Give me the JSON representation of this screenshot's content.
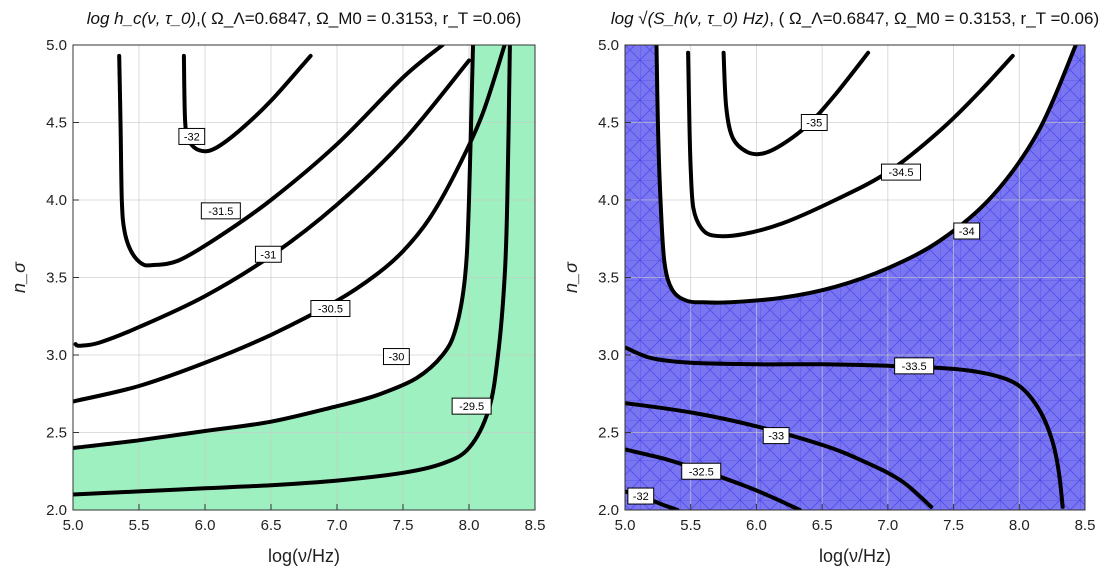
{
  "chart_data": [
    {
      "type": "contour",
      "title_math": "log h_c(ν, τ_0)",
      "title_params": ",( Ω_Λ=0.6847,  Ω_M0 = 0.3153, r_T =0.06)",
      "xlabel": "log(ν/Hz)",
      "ylabel": "n_σ",
      "xlim": [
        5.0,
        8.5
      ],
      "ylim": [
        2.0,
        5.0
      ],
      "xticks": [
        "5.0",
        "5.5",
        "6.0",
        "6.5",
        "7.0",
        "7.5",
        "8.0",
        "8.5"
      ],
      "yticks": [
        "2.0",
        "2.5",
        "3.0",
        "3.5",
        "4.0",
        "4.5",
        "5.0"
      ],
      "grid": true,
      "shade_color": "#9ff0c0",
      "shade_region": [
        [
          5.0,
          2.4
        ],
        [
          5.5,
          2.45
        ],
        [
          6.0,
          2.51
        ],
        [
          6.5,
          2.57
        ],
        [
          7.0,
          2.67
        ],
        [
          7.3,
          2.74
        ],
        [
          7.6,
          2.85
        ],
        [
          7.8,
          3.0
        ],
        [
          7.9,
          3.17
        ],
        [
          7.97,
          3.5
        ],
        [
          8.0,
          4.0
        ],
        [
          8.03,
          5.0
        ],
        [
          8.5,
          5.0
        ],
        [
          8.5,
          2.0
        ],
        [
          5.0,
          2.0
        ]
      ],
      "contours": [
        {
          "level": "-32",
          "label_at": [
            5.9,
            4.41
          ],
          "points": [
            [
              5.84,
              4.93
            ],
            [
              5.85,
              4.5
            ],
            [
              5.88,
              4.38
            ],
            [
              5.96,
              4.32
            ],
            [
              6.07,
              4.33
            ],
            [
              6.25,
              4.44
            ],
            [
              6.5,
              4.64
            ],
            [
              6.8,
              4.93
            ]
          ]
        },
        {
          "level": "-31.5",
          "label_at": [
            6.12,
            3.93
          ],
          "points": [
            [
              5.35,
              4.93
            ],
            [
              5.36,
              4.5
            ],
            [
              5.37,
              4.0
            ],
            [
              5.39,
              3.8
            ],
            [
              5.44,
              3.67
            ],
            [
              5.52,
              3.59
            ],
            [
              5.6,
              3.58
            ],
            [
              5.8,
              3.61
            ],
            [
              6.1,
              3.76
            ],
            [
              6.5,
              4.0
            ],
            [
              7.0,
              4.36
            ],
            [
              7.5,
              4.79
            ],
            [
              7.8,
              5.0
            ]
          ]
        },
        {
          "level": "-31",
          "label_at": [
            6.48,
            3.65
          ],
          "points": [
            [
              5.02,
              3.07
            ],
            [
              5.05,
              3.06
            ],
            [
              5.2,
              3.08
            ],
            [
              5.5,
              3.18
            ],
            [
              6.0,
              3.38
            ],
            [
              6.5,
              3.64
            ],
            [
              7.0,
              3.97
            ],
            [
              7.5,
              4.38
            ],
            [
              8.0,
              4.9
            ]
          ]
        },
        {
          "level": "-30.5",
          "label_at": [
            6.95,
            3.3
          ],
          "points": [
            [
              5.0,
              2.7
            ],
            [
              5.5,
              2.8
            ],
            [
              6.0,
              2.95
            ],
            [
              6.5,
              3.13
            ],
            [
              7.0,
              3.35
            ],
            [
              7.3,
              3.52
            ],
            [
              7.5,
              3.67
            ],
            [
              7.7,
              3.88
            ],
            [
              7.9,
              4.18
            ],
            [
              8.1,
              4.55
            ],
            [
              8.27,
              5.0
            ]
          ]
        },
        {
          "level": "-30",
          "label_at": [
            7.45,
            2.99
          ],
          "points": [
            [
              5.0,
              2.4
            ],
            [
              5.5,
              2.45
            ],
            [
              6.0,
              2.51
            ],
            [
              6.5,
              2.57
            ],
            [
              7.0,
              2.67
            ],
            [
              7.3,
              2.74
            ],
            [
              7.6,
              2.85
            ],
            [
              7.8,
              3.0
            ],
            [
              7.9,
              3.17
            ],
            [
              7.97,
              3.5
            ],
            [
              8.0,
              4.0
            ],
            [
              8.03,
              5.0
            ]
          ]
        },
        {
          "level": "-29.5",
          "label_at": [
            8.02,
            2.67
          ],
          "points": [
            [
              5.0,
              2.1
            ],
            [
              5.5,
              2.12
            ],
            [
              6.0,
              2.14
            ],
            [
              6.5,
              2.16
            ],
            [
              7.0,
              2.19
            ],
            [
              7.5,
              2.24
            ],
            [
              7.8,
              2.3
            ],
            [
              8.0,
              2.4
            ],
            [
              8.15,
              2.65
            ],
            [
              8.22,
              3.0
            ],
            [
              8.27,
              3.5
            ],
            [
              8.29,
              4.0
            ],
            [
              8.31,
              5.0
            ]
          ]
        }
      ]
    },
    {
      "type": "contour",
      "title_math": "log √(S_h(ν, τ_0) Hz)",
      "title_params": ", ( Ω_Λ=0.6847,  Ω_M0 = 0.3153, r_T =0.06)",
      "xlabel": "log(ν/Hz)",
      "ylabel": "n_σ",
      "xlim": [
        5.0,
        8.5
      ],
      "ylim": [
        2.0,
        5.0
      ],
      "xticks": [
        "5.0",
        "5.5",
        "6.0",
        "6.5",
        "7.0",
        "7.5",
        "8.0",
        "8.5"
      ],
      "yticks": [
        "2.0",
        "2.5",
        "3.0",
        "3.5",
        "4.0",
        "4.5",
        "5.0"
      ],
      "grid": true,
      "shade_color": "#7a76f2",
      "hatch_color": "#3a36e0",
      "unshaded_region": [
        [
          5.24,
          5.0
        ],
        [
          5.25,
          4.5
        ],
        [
          5.27,
          4.0
        ],
        [
          5.3,
          3.6
        ],
        [
          5.36,
          3.42
        ],
        [
          5.47,
          3.35
        ],
        [
          5.6,
          3.34
        ],
        [
          5.8,
          3.34
        ],
        [
          6.2,
          3.37
        ],
        [
          6.6,
          3.44
        ],
        [
          7.0,
          3.56
        ],
        [
          7.4,
          3.74
        ],
        [
          7.8,
          4.03
        ],
        [
          8.15,
          4.45
        ],
        [
          8.43,
          5.0
        ]
      ],
      "contours": [
        {
          "level": "-35",
          "label_at": [
            6.44,
            4.5
          ],
          "points": [
            [
              5.75,
              4.95
            ],
            [
              5.77,
              4.6
            ],
            [
              5.82,
              4.4
            ],
            [
              5.93,
              4.31
            ],
            [
              6.05,
              4.3
            ],
            [
              6.2,
              4.36
            ],
            [
              6.4,
              4.49
            ],
            [
              6.6,
              4.68
            ],
            [
              6.85,
              4.95
            ]
          ]
        },
        {
          "level": "-34.5",
          "label_at": [
            7.1,
            4.18
          ],
          "points": [
            [
              5.48,
              4.95
            ],
            [
              5.49,
              4.5
            ],
            [
              5.5,
              4.2
            ],
            [
              5.52,
              3.95
            ],
            [
              5.58,
              3.82
            ],
            [
              5.68,
              3.77
            ],
            [
              5.9,
              3.78
            ],
            [
              6.2,
              3.85
            ],
            [
              6.6,
              4.0
            ],
            [
              7.0,
              4.18
            ],
            [
              7.4,
              4.45
            ],
            [
              7.7,
              4.7
            ],
            [
              7.95,
              4.93
            ]
          ]
        },
        {
          "level": "-34",
          "label_at": [
            7.6,
            3.8
          ],
          "points": [
            [
              5.24,
              5.0
            ],
            [
              5.25,
              4.5
            ],
            [
              5.27,
              4.0
            ],
            [
              5.3,
              3.6
            ],
            [
              5.36,
              3.42
            ],
            [
              5.47,
              3.35
            ],
            [
              5.6,
              3.34
            ],
            [
              5.8,
              3.34
            ],
            [
              6.2,
              3.37
            ],
            [
              6.6,
              3.44
            ],
            [
              7.0,
              3.56
            ],
            [
              7.4,
              3.74
            ],
            [
              7.8,
              4.03
            ],
            [
              8.15,
              4.45
            ],
            [
              8.43,
              5.0
            ]
          ]
        },
        {
          "level": "-33.5",
          "label_at": [
            7.2,
            2.93
          ],
          "points": [
            [
              5.0,
              3.05
            ],
            [
              5.2,
              2.98
            ],
            [
              5.5,
              2.95
            ],
            [
              6.0,
              2.94
            ],
            [
              6.5,
              2.94
            ],
            [
              7.0,
              2.93
            ],
            [
              7.5,
              2.91
            ],
            [
              7.8,
              2.87
            ],
            [
              8.0,
              2.8
            ],
            [
              8.15,
              2.65
            ],
            [
              8.25,
              2.45
            ],
            [
              8.3,
              2.25
            ],
            [
              8.33,
              2.02
            ]
          ]
        },
        {
          "level": "-33",
          "label_at": [
            6.15,
            2.48
          ],
          "points": [
            [
              5.0,
              2.69
            ],
            [
              5.5,
              2.63
            ],
            [
              6.0,
              2.54
            ],
            [
              6.5,
              2.42
            ],
            [
              6.8,
              2.32
            ],
            [
              7.1,
              2.19
            ],
            [
              7.33,
              2.02
            ]
          ]
        },
        {
          "level": "-32.5",
          "label_at": [
            5.58,
            2.25
          ],
          "points": [
            [
              5.0,
              2.39
            ],
            [
              5.3,
              2.33
            ],
            [
              5.6,
              2.25
            ],
            [
              5.9,
              2.16
            ],
            [
              6.1,
              2.09
            ],
            [
              6.33,
              2.0
            ]
          ]
        },
        {
          "level": "-32",
          "label_at": [
            5.12,
            2.09
          ],
          "points": [
            [
              5.0,
              2.12
            ],
            [
              5.15,
              2.08
            ],
            [
              5.3,
              2.03
            ],
            [
              5.4,
              2.0
            ]
          ]
        }
      ]
    }
  ]
}
